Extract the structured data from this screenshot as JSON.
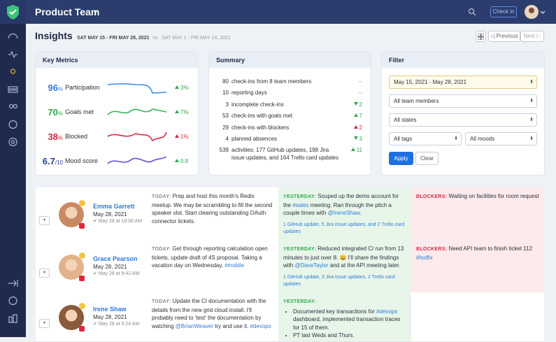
{
  "header": {
    "title": "Product Team",
    "check_in": "Check in"
  },
  "insights": {
    "title": "Insights",
    "range": "SAT MAY 15 - FRI MAY 28, 2021",
    "vs": "vs.",
    "compare": "SAT MAY 1 - FRI MAY 14, 2021",
    "previous": "Previous",
    "next": "Next"
  },
  "key_metrics": {
    "title": "Key Metrics",
    "items": [
      {
        "value": "96",
        "unit": "%",
        "label": "Participation",
        "change": "3%",
        "color": "#3b7ddd",
        "line_color": "#3b8fe6",
        "change_color": "#2fa84f"
      },
      {
        "value": "70",
        "unit": "%",
        "label": "Goals met",
        "change": "7%",
        "color": "#2fa84f",
        "line_color": "#34b35a",
        "change_color": "#2fa84f"
      },
      {
        "value": "38",
        "unit": "%",
        "label": "Blocked",
        "change": "1%",
        "color": "#d6263f",
        "line_color": "#d6263f",
        "change_color": "#d6263f"
      },
      {
        "value": "6.7",
        "unit": "/10",
        "label": "Mood score",
        "change": "0.8",
        "color": "#2a3d8f",
        "line_color": "#5b4fd6",
        "change_color": "#2fa84f"
      }
    ]
  },
  "summary": {
    "title": "Summary",
    "rows": [
      {
        "count": 80,
        "text": "check-ins from 8 team members",
        "change": "--"
      },
      {
        "count": 10,
        "text": "reporting days",
        "change": "--"
      },
      {
        "count": 3,
        "text": "incomplete check-ins",
        "change": 2,
        "trend": "down",
        "tone": "good"
      },
      {
        "count": 53,
        "text": "check-ins with goals met",
        "change": 7,
        "trend": "up",
        "tone": "good"
      },
      {
        "count": 29,
        "text": "check-ins with blockers",
        "change": 2,
        "trend": "up",
        "tone": "bad"
      },
      {
        "count": 4,
        "text": "planned absences",
        "change": 3,
        "trend": "down",
        "tone": "good"
      },
      {
        "count": 539,
        "text": "activities: 177 GitHub updates, 198 Jira issue updates, and 164 Trello card updates",
        "change": 11,
        "trend": "up",
        "tone": "good"
      }
    ]
  },
  "filter": {
    "title": "Filter",
    "date": "May 15, 2021 - May 28, 2021",
    "members": "All team members",
    "states": "All states",
    "tags": "All tags",
    "moods": "All moods",
    "apply": "Apply",
    "clear": "Clear"
  },
  "labels": {
    "today": "TODAY:",
    "yesterday": "YESTERDAY:",
    "blockers": "BLOCKERS:"
  },
  "checkins": [
    {
      "name": "Emma Garrett",
      "date": "May 28, 2021",
      "time": "May 28 at 10:00 AM",
      "today": "Prep and host this month's Redis meetup. We may be scrambling to fill the second speaker slot. Start clearing outstanding OAuth connector tickets.",
      "yesterday": "Souped up the demo account for the #sales meeting. Ran through the pitch a couple times with @IreneShaw.",
      "activity": "1 GitHub update, 5 Jira issue updates, and 2 Trello card updates",
      "blockers": "Waiting on facilities for room request"
    },
    {
      "name": "Grace Pearson",
      "date": "May 28, 2021",
      "time": "May 28 at 9:42 AM",
      "today": "Get through reporting calculation open tickets, update draft of 4S proposal. Taking a vacation day on Wednesday. #mobile",
      "yesterday": "Reduced integrated CI run from 13 minutes to just over 8. 😀 I'll share the findings with @DaveTaylor and at the API meeting later.",
      "activity": "1 GitHub update, 3 Jira issue updates, 2 Trello card updates",
      "blockers": "Need API team to finish ticket 112 #hotfix"
    },
    {
      "name": "Irene Shaw",
      "date": "May 28, 2021",
      "time": "May 28 at 9:24 AM",
      "today": "Update the CI documentation with the details from the new grid cloud install. I'll probably need to 'test' the documentation by watching @BrianWeaver try and use it. #devops",
      "yesterday_items": [
        "Documented key transactions for #devops dashboard, implemented transaction traces for 15 of them.",
        "PT last Weds and Thurs."
      ]
    }
  ]
}
